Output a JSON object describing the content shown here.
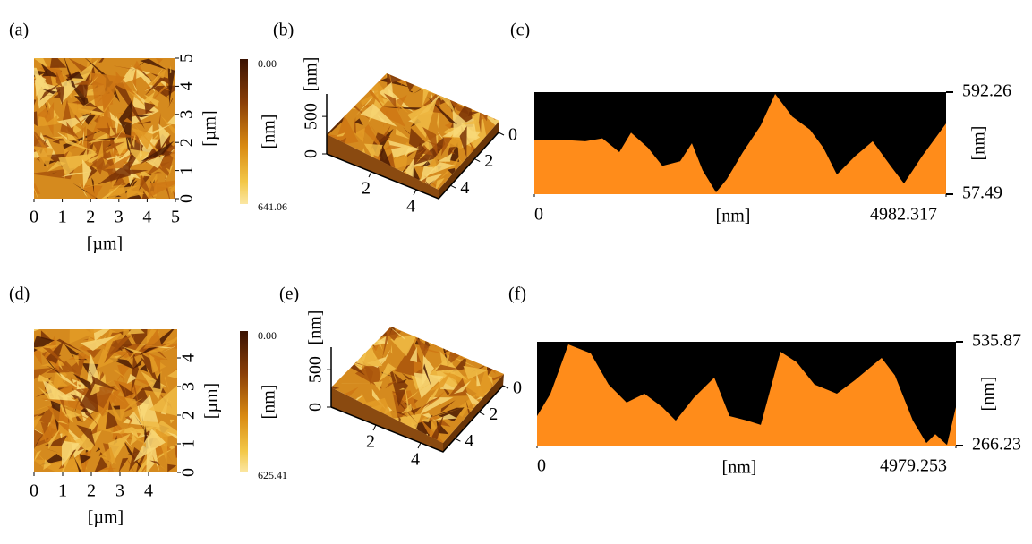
{
  "panels": [
    {
      "label": "(a)",
      "kind": "image",
      "xlim": [
        0,
        5
      ],
      "ylim": [
        0,
        5
      ],
      "xticks": [
        0,
        1,
        2,
        3,
        4,
        5
      ],
      "yticks": [
        0,
        1,
        2,
        3,
        4,
        5
      ],
      "xlabel": "[µm]",
      "ylabel": "[µm]",
      "colorbar": {
        "top": {
          "value": 0,
          "label": "0.00"
        },
        "bottom": 641.06,
        "label": "[nm]"
      }
    },
    {
      "label": "(b)",
      "kind": "surface",
      "xlim": [
        0,
        5
      ],
      "zlim": [
        0,
        800
      ],
      "xticks": [
        2,
        4
      ],
      "yticks": [
        0,
        2,
        4
      ],
      "zticks": [
        0,
        500
      ],
      "zlabel": "[nm]"
    },
    {
      "label": "(c)",
      "kind": "profile",
      "color": "#ff8c1a",
      "xlim": [
        0,
        4982.317
      ],
      "ylim": [
        57.49,
        592.26
      ],
      "xticks": [
        0,
        4982.317
      ],
      "yticks": [
        57.49,
        592.26
      ],
      "xlabel": "[nm]",
      "ylabel": "[nm]",
      "x": [
        0,
        206,
        412,
        617,
        823,
        1029,
        1170,
        1376,
        1549,
        1765,
        1906,
        2036,
        2199,
        2329,
        2524,
        2740,
        2914,
        3119,
        3336,
        3498,
        3661,
        3878,
        4094,
        4311,
        4473,
        4690,
        4982
      ],
      "values": [
        340,
        340,
        340,
        335,
        350,
        278,
        380,
        300,
        206,
        230,
        324,
        183,
        67,
        136,
        278,
        418,
        583,
        465,
        395,
        300,
        160,
        255,
        335,
        206,
        113,
        255,
        428
      ]
    },
    {
      "label": "(d)",
      "kind": "image",
      "xlim": [
        0,
        5
      ],
      "ylim": [
        0,
        5
      ],
      "xticks": [
        0,
        1,
        2,
        3,
        4
      ],
      "yticks": [
        0,
        1,
        2,
        3,
        4
      ],
      "xlabel": "[µm]",
      "ylabel": "[µm]",
      "colorbar": {
        "top": {
          "value": 0,
          "label": "0.00"
        },
        "bottom": 625.41,
        "label": "[nm]"
      }
    },
    {
      "label": "(e)",
      "kind": "surface",
      "xlim": [
        0,
        5
      ],
      "zlim": [
        0,
        800
      ],
      "xticks": [
        2,
        4
      ],
      "yticks": [
        0,
        2,
        4
      ],
      "zticks": [
        0,
        500
      ],
      "zlabel": "[nm]"
    },
    {
      "label": "(f)",
      "kind": "profile",
      "color": "#ff8c1a",
      "xlim": [
        0,
        4979.253
      ],
      "ylim": [
        266.23,
        535.87
      ],
      "xticks": [
        0,
        4979.253
      ],
      "yticks": [
        266.23,
        535.87
      ],
      "xlabel": "[nm]",
      "ylabel": "[nm]",
      "x": [
        0,
        160,
        372,
        638,
        851,
        1064,
        1277,
        1490,
        1649,
        1862,
        2107,
        2288,
        2500,
        2660,
        2894,
        3086,
        3298,
        3564,
        3777,
        4096,
        4255,
        4468,
        4628,
        4734,
        4873,
        4979
      ],
      "values": [
        343,
        401,
        529,
        506,
        425,
        378,
        401,
        366,
        331,
        390,
        443,
        343,
        331,
        320,
        510,
        483,
        425,
        401,
        436,
        494,
        448,
        331,
        273,
        296,
        268,
        366
      ]
    }
  ]
}
